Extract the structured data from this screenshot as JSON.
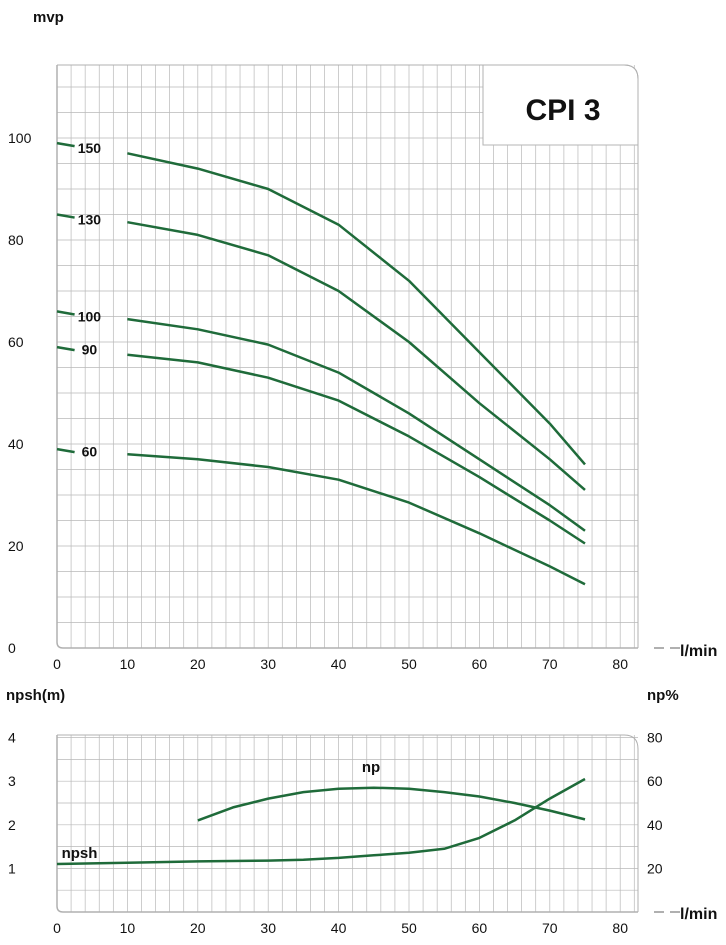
{
  "colors": {
    "curve": "#1f6b3a",
    "grid": "#b8b8b8",
    "frame": "#b0b0b0",
    "text": "#111111"
  },
  "chart_data": [
    {
      "type": "line",
      "title": "CPI 3",
      "ylabel": "mvp",
      "xlabel": "l/min",
      "xlim": [
        0,
        82
      ],
      "ylim": [
        0,
        110
      ],
      "x_ticks": [
        "0",
        "10",
        "20",
        "30",
        "40",
        "50",
        "60",
        "70",
        "80"
      ],
      "y_ticks": [
        "0",
        "20",
        "40",
        "60",
        "80",
        "100"
      ],
      "grid": true,
      "series": [
        {
          "name": "150",
          "x": [
            0,
            5,
            10,
            20,
            30,
            40,
            50,
            60,
            70,
            75
          ],
          "y": [
            99,
            98,
            97,
            94,
            90,
            83,
            72,
            58,
            44,
            36
          ]
        },
        {
          "name": "130",
          "x": [
            0,
            5,
            10,
            20,
            30,
            40,
            50,
            60,
            70,
            75
          ],
          "y": [
            85,
            84,
            83.5,
            81,
            77,
            70,
            60,
            48,
            37,
            31
          ]
        },
        {
          "name": "100",
          "x": [
            0,
            5,
            10,
            20,
            30,
            40,
            50,
            60,
            70,
            75
          ],
          "y": [
            66,
            65,
            64.5,
            62.5,
            59.5,
            54,
            46,
            37,
            28,
            23
          ]
        },
        {
          "name": "90",
          "x": [
            0,
            5,
            10,
            20,
            30,
            40,
            50,
            60,
            70,
            75
          ],
          "y": [
            59,
            58.5,
            57.5,
            56,
            53,
            48.5,
            41.5,
            33.5,
            25,
            20.5
          ]
        },
        {
          "name": "60",
          "x": [
            0,
            5,
            10,
            20,
            30,
            40,
            50,
            60,
            70,
            75
          ],
          "y": [
            39,
            38.5,
            38,
            37,
            35.5,
            33,
            28.5,
            22.5,
            16,
            12.5
          ]
        }
      ]
    },
    {
      "type": "line",
      "ylabel": "npsh(m)",
      "y2label": "np%",
      "xlabel": "l/min",
      "xlim": [
        0,
        82
      ],
      "ylim": [
        0,
        4.2
      ],
      "y2lim": [
        0,
        84
      ],
      "x_ticks": [
        "0",
        "10",
        "20",
        "30",
        "40",
        "50",
        "60",
        "70",
        "80"
      ],
      "y_ticks": [
        "1",
        "2",
        "3",
        "4"
      ],
      "y2_ticks": [
        "20",
        "40",
        "60",
        "80"
      ],
      "grid": true,
      "series": [
        {
          "name": "np",
          "axis": "right",
          "x": [
            20,
            25,
            30,
            35,
            40,
            45,
            50,
            55,
            60,
            65,
            70,
            75
          ],
          "y": [
            42,
            48,
            52,
            55,
            56.5,
            57,
            56.5,
            55,
            53,
            50,
            46.5,
            42.5
          ]
        },
        {
          "name": "npsh",
          "axis": "left",
          "x": [
            0,
            10,
            20,
            30,
            35,
            40,
            45,
            50,
            55,
            60,
            65,
            70,
            75
          ],
          "y": [
            1.1,
            1.13,
            1.16,
            1.18,
            1.2,
            1.24,
            1.3,
            1.36,
            1.45,
            1.7,
            2.1,
            2.6,
            3.05
          ]
        }
      ]
    }
  ]
}
